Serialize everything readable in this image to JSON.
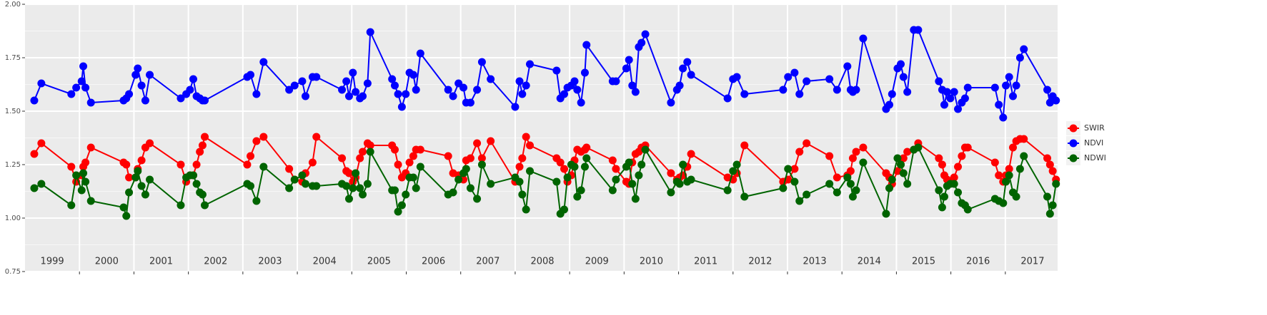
{
  "chart_data": {
    "type": "line",
    "x": [
      1999.17,
      1999.3,
      1999.85,
      1999.94,
      2000.04,
      2000.07,
      2000.11,
      2000.21,
      2000.81,
      2000.86,
      2000.91,
      2001.03,
      2001.07,
      2001.14,
      2001.21,
      2001.29,
      2001.86,
      2001.96,
      2002.03,
      2002.09,
      2002.15,
      2002.21,
      2002.26,
      2002.3,
      2003.08,
      2003.14,
      2003.25,
      2003.38,
      2003.85,
      2003.95,
      2004.09,
      2004.15,
      2004.28,
      2004.35,
      2004.82,
      2004.9,
      2004.95,
      2005.02,
      2005.07,
      2005.15,
      2005.2,
      2005.29,
      2005.34,
      2005.74,
      2005.79,
      2005.85,
      2005.92,
      2005.99,
      2006.06,
      2006.13,
      2006.18,
      2006.26,
      2006.77,
      2006.86,
      2006.96,
      2007.05,
      2007.1,
      2007.18,
      2007.3,
      2007.39,
      2007.55,
      2008.0,
      2008.08,
      2008.13,
      2008.2,
      2008.27,
      2008.76,
      2008.83,
      2008.9,
      2008.96,
      2009.03,
      2009.09,
      2009.14,
      2009.21,
      2009.28,
      2009.31,
      2009.79,
      2009.85,
      2010.04,
      2010.09,
      2010.15,
      2010.21,
      2010.27,
      2010.32,
      2010.39,
      2010.86,
      2010.97,
      2011.02,
      2011.08,
      2011.16,
      2011.23,
      2011.9,
      2012.0,
      2012.07,
      2012.21,
      2012.92,
      2013.01,
      2013.13,
      2013.22,
      2013.35,
      2013.77,
      2013.91,
      2014.1,
      2014.16,
      2014.2,
      2014.26,
      2014.39,
      2014.81,
      2014.87,
      2014.92,
      2015.02,
      2015.08,
      2015.13,
      2015.2,
      2015.32,
      2015.4,
      2015.78,
      2015.84,
      2015.88,
      2015.93,
      2015.99,
      2016.06,
      2016.13,
      2016.2,
      2016.26,
      2016.31,
      2016.81,
      2016.88,
      2016.96,
      2017.01,
      2017.07,
      2017.14,
      2017.2,
      2017.27,
      2017.34,
      2017.77,
      2017.82,
      2017.87,
      2017.93
    ],
    "series": [
      {
        "name": "SWIR",
        "color": "#ff0000",
        "values": [
          1.3,
          1.35,
          1.24,
          1.17,
          1.2,
          1.24,
          1.26,
          1.33,
          1.26,
          1.25,
          1.19,
          1.19,
          1.23,
          1.27,
          1.33,
          1.35,
          1.25,
          1.17,
          1.2,
          1.2,
          1.25,
          1.31,
          1.34,
          1.38,
          1.25,
          1.29,
          1.36,
          1.38,
          1.23,
          1.18,
          1.17,
          1.21,
          1.26,
          1.38,
          1.28,
          1.22,
          1.21,
          1.17,
          1.19,
          1.28,
          1.31,
          1.35,
          1.34,
          1.34,
          1.32,
          1.25,
          1.19,
          1.21,
          1.26,
          1.29,
          1.32,
          1.32,
          1.29,
          1.21,
          1.2,
          1.18,
          1.27,
          1.28,
          1.35,
          1.28,
          1.36,
          1.17,
          1.24,
          1.28,
          1.38,
          1.34,
          1.28,
          1.26,
          1.23,
          1.17,
          1.2,
          1.27,
          1.32,
          1.31,
          1.32,
          1.33,
          1.27,
          1.23,
          1.17,
          1.16,
          1.26,
          1.3,
          1.31,
          1.33,
          1.34,
          1.21,
          1.18,
          1.19,
          1.2,
          1.24,
          1.3,
          1.19,
          1.18,
          1.21,
          1.34,
          1.17,
          1.18,
          1.23,
          1.31,
          1.35,
          1.29,
          1.19,
          1.2,
          1.22,
          1.28,
          1.31,
          1.33,
          1.21,
          1.19,
          1.16,
          1.22,
          1.25,
          1.28,
          1.31,
          1.32,
          1.35,
          1.28,
          1.25,
          1.2,
          1.18,
          1.17,
          1.19,
          1.24,
          1.29,
          1.33,
          1.33,
          1.26,
          1.2,
          1.17,
          1.2,
          1.23,
          1.33,
          1.36,
          1.37,
          1.37,
          1.28,
          1.25,
          1.22,
          1.18
        ]
      },
      {
        "name": "NDVI",
        "color": "#0000ff",
        "values": [
          1.55,
          1.63,
          1.58,
          1.61,
          1.64,
          1.71,
          1.61,
          1.54,
          1.55,
          1.56,
          1.58,
          1.67,
          1.7,
          1.62,
          1.55,
          1.67,
          1.56,
          1.58,
          1.6,
          1.65,
          1.57,
          1.56,
          1.55,
          1.55,
          1.66,
          1.67,
          1.58,
          1.73,
          1.6,
          1.62,
          1.64,
          1.57,
          1.66,
          1.66,
          1.6,
          1.64,
          1.57,
          1.68,
          1.59,
          1.56,
          1.57,
          1.63,
          1.87,
          1.65,
          1.62,
          1.58,
          1.52,
          1.58,
          1.68,
          1.67,
          1.6,
          1.77,
          1.6,
          1.57,
          1.63,
          1.61,
          1.54,
          1.54,
          1.6,
          1.73,
          1.65,
          1.52,
          1.64,
          1.58,
          1.62,
          1.72,
          1.69,
          1.56,
          1.58,
          1.61,
          1.62,
          1.64,
          1.6,
          1.54,
          1.68,
          1.81,
          1.64,
          1.64,
          1.7,
          1.74,
          1.62,
          1.59,
          1.8,
          1.82,
          1.86,
          1.54,
          1.6,
          1.62,
          1.7,
          1.73,
          1.67,
          1.56,
          1.65,
          1.66,
          1.58,
          1.6,
          1.66,
          1.68,
          1.58,
          1.64,
          1.65,
          1.6,
          1.71,
          1.6,
          1.59,
          1.6,
          1.84,
          1.51,
          1.53,
          1.58,
          1.7,
          1.72,
          1.66,
          1.59,
          1.88,
          1.88,
          1.64,
          1.6,
          1.53,
          1.59,
          1.56,
          1.59,
          1.51,
          1.54,
          1.56,
          1.61,
          1.61,
          1.53,
          1.47,
          1.62,
          1.66,
          1.57,
          1.62,
          1.75,
          1.79,
          1.6,
          1.54,
          1.57,
          1.55
        ]
      },
      {
        "name": "NDWI",
        "color": "#006400",
        "values": [
          1.14,
          1.16,
          1.06,
          1.2,
          1.13,
          1.21,
          1.17,
          1.08,
          1.05,
          1.01,
          1.12,
          1.19,
          1.22,
          1.15,
          1.11,
          1.18,
          1.06,
          1.19,
          1.2,
          1.2,
          1.16,
          1.12,
          1.11,
          1.06,
          1.16,
          1.15,
          1.08,
          1.24,
          1.14,
          1.18,
          1.2,
          1.16,
          1.15,
          1.15,
          1.16,
          1.15,
          1.09,
          1.14,
          1.21,
          1.14,
          1.11,
          1.16,
          1.31,
          1.13,
          1.13,
          1.03,
          1.06,
          1.11,
          1.19,
          1.19,
          1.14,
          1.24,
          1.11,
          1.12,
          1.18,
          1.21,
          1.23,
          1.14,
          1.09,
          1.25,
          1.16,
          1.19,
          1.17,
          1.11,
          1.04,
          1.22,
          1.17,
          1.02,
          1.04,
          1.19,
          1.25,
          1.24,
          1.1,
          1.13,
          1.24,
          1.28,
          1.13,
          1.18,
          1.24,
          1.26,
          1.16,
          1.09,
          1.2,
          1.25,
          1.32,
          1.12,
          1.17,
          1.16,
          1.25,
          1.17,
          1.18,
          1.13,
          1.22,
          1.25,
          1.1,
          1.14,
          1.23,
          1.17,
          1.08,
          1.11,
          1.16,
          1.12,
          1.19,
          1.16,
          1.1,
          1.13,
          1.26,
          1.02,
          1.14,
          1.18,
          1.28,
          1.25,
          1.21,
          1.16,
          1.32,
          1.33,
          1.13,
          1.05,
          1.1,
          1.15,
          1.16,
          1.16,
          1.12,
          1.07,
          1.06,
          1.04,
          1.09,
          1.08,
          1.07,
          1.17,
          1.2,
          1.12,
          1.1,
          1.23,
          1.29,
          1.1,
          1.02,
          1.06,
          1.16
        ]
      }
    ],
    "xlim": [
      1999,
      2017.96
    ],
    "x_boundaries": [
      2000,
      2001,
      2002,
      2003,
      2004,
      2005,
      2006,
      2007,
      2008,
      2009,
      2010,
      2011,
      2012,
      2013,
      2014,
      2015,
      2016,
      2017
    ],
    "year_labels": [
      "1999",
      "2000",
      "2001",
      "2002",
      "2003",
      "2004",
      "2005",
      "2006",
      "2007",
      "2008",
      "2009",
      "2010",
      "2011",
      "2012",
      "2013",
      "2014",
      "2015",
      "2016",
      "2017"
    ],
    "ylim": [
      0.75,
      2.0
    ],
    "yticks": [
      {
        "value": 0.75,
        "label": "0.75"
      },
      {
        "value": 1.0,
        "label": "1.00"
      },
      {
        "value": 1.25,
        "label": "1.25"
      },
      {
        "value": 1.5,
        "label": "1.50"
      },
      {
        "value": 1.75,
        "label": "1.75"
      },
      {
        "value": 2.0,
        "label": "2.00"
      }
    ],
    "grid": true,
    "legend": "right"
  }
}
